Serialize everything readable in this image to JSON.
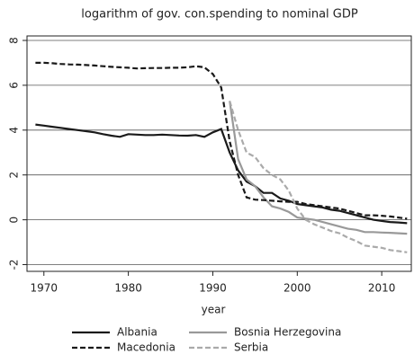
{
  "chart_data": {
    "type": "line",
    "title": "logarithm of gov. con.spending to nominal GDP",
    "xlabel": "year",
    "x": [
      1969,
      1970,
      1971,
      1972,
      1973,
      1974,
      1975,
      1976,
      1977,
      1978,
      1979,
      1980,
      1981,
      1982,
      1983,
      1984,
      1985,
      1986,
      1987,
      1988,
      1989,
      1990,
      1991,
      1992,
      1993,
      1994,
      1995,
      1996,
      1997,
      1998,
      1999,
      2000,
      2001,
      2002,
      2003,
      2004,
      2005,
      2006,
      2007,
      2008,
      2009,
      2010,
      2011,
      2012,
      2013
    ],
    "series": [
      {
        "name": "Albania",
        "color": "#1a1a1a",
        "dash": "solid",
        "values": [
          4.25,
          4.2,
          4.15,
          4.1,
          4.05,
          4.0,
          3.95,
          3.9,
          3.82,
          3.75,
          3.7,
          3.82,
          3.8,
          3.78,
          3.78,
          3.8,
          3.78,
          3.76,
          3.75,
          3.78,
          3.7,
          3.9,
          4.05,
          3.0,
          2.2,
          1.7,
          1.5,
          1.2,
          1.2,
          0.95,
          0.85,
          0.7,
          0.65,
          0.6,
          0.55,
          0.45,
          0.4,
          0.3,
          0.2,
          0.1,
          0.0,
          -0.05,
          -0.1,
          -0.12,
          -0.15
        ]
      },
      {
        "name": "Bosnia Herzegovina",
        "color": "#999999",
        "dash": "solid",
        "values": [
          null,
          null,
          null,
          null,
          null,
          null,
          null,
          null,
          null,
          null,
          null,
          null,
          null,
          null,
          null,
          null,
          null,
          null,
          null,
          null,
          null,
          null,
          null,
          5.3,
          2.7,
          1.8,
          1.5,
          1.0,
          0.6,
          0.5,
          0.35,
          0.1,
          0.05,
          0.0,
          -0.1,
          -0.2,
          -0.3,
          -0.4,
          -0.45,
          -0.55,
          -0.55,
          -0.57,
          -0.58,
          -0.6,
          -0.62
        ]
      },
      {
        "name": "Macedonia",
        "color": "#1a1a1a",
        "dash": "dashed",
        "values": [
          7.0,
          7.0,
          6.98,
          6.95,
          6.93,
          6.92,
          6.9,
          6.88,
          6.85,
          6.82,
          6.8,
          6.78,
          6.75,
          6.76,
          6.77,
          6.77,
          6.78,
          6.78,
          6.8,
          6.85,
          6.8,
          6.5,
          5.9,
          3.5,
          2.0,
          1.0,
          0.9,
          0.88,
          0.85,
          0.82,
          0.8,
          0.8,
          0.7,
          0.65,
          0.6,
          0.55,
          0.5,
          0.4,
          0.3,
          0.2,
          0.2,
          0.18,
          0.15,
          0.1,
          0.05
        ]
      },
      {
        "name": "Serbia",
        "color": "#aaaaaa",
        "dash": "dashed",
        "values": [
          null,
          null,
          null,
          null,
          null,
          null,
          null,
          null,
          null,
          null,
          null,
          null,
          null,
          null,
          null,
          null,
          null,
          null,
          null,
          null,
          null,
          null,
          null,
          5.3,
          4.0,
          3.0,
          2.8,
          2.3,
          2.0,
          1.8,
          1.3,
          0.5,
          0.0,
          -0.2,
          -0.35,
          -0.5,
          -0.6,
          -0.8,
          -0.95,
          -1.15,
          -1.2,
          -1.25,
          -1.35,
          -1.4,
          -1.45
        ]
      }
    ],
    "xlim": [
      1968,
      2013.5
    ],
    "xticks": [
      1970,
      1980,
      1990,
      2000,
      2010
    ],
    "ylim": [
      -2.3,
      8.2
    ],
    "yticks": [
      -2,
      0,
      2,
      4,
      6,
      8
    ],
    "grid": true,
    "legend": "bottom"
  }
}
